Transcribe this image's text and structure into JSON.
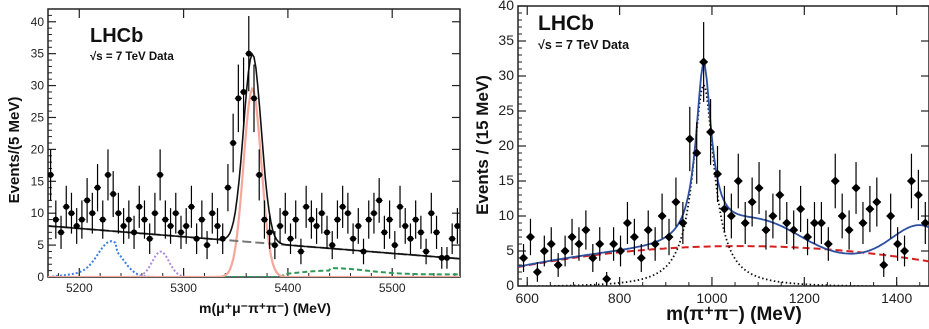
{
  "chart_data": [
    {
      "type": "scatter",
      "experiment_label": "LHCb",
      "energy_label": "√s = 7 TeV Data",
      "ylabel": "Events/(5 MeV)",
      "xlabel": "m(μ⁺μ⁻π⁺π⁻) (MeV)",
      "xlim": [
        5170,
        5565
      ],
      "ylim": [
        0,
        42
      ],
      "xticks": [
        5200,
        5300,
        5400,
        5500
      ],
      "yticks": [
        0,
        5,
        10,
        15,
        20,
        25,
        30,
        35,
        40
      ],
      "grid": false,
      "colors": {
        "frame": "#222222",
        "signal": "#f4a79a",
        "refl1": "#3a7fe0",
        "refl2": "#b088e0",
        "partial": "#2e9a55",
        "background": "#777777",
        "total": "#111111"
      },
      "points": {
        "x": [
          5172.5,
          5177.5,
          5182.5,
          5187.5,
          5192.5,
          5197.5,
          5202.5,
          5207.5,
          5212.5,
          5217.5,
          5222.5,
          5227.5,
          5232.5,
          5237.5,
          5242.5,
          5247.5,
          5252.5,
          5257.5,
          5262.5,
          5267.5,
          5272.5,
          5277.5,
          5282.5,
          5287.5,
          5292.5,
          5297.5,
          5302.5,
          5307.5,
          5312.5,
          5317.5,
          5322.5,
          5327.5,
          5332.5,
          5337.5,
          5342.5,
          5347.5,
          5352.5,
          5357.5,
          5362.5,
          5367.5,
          5372.5,
          5377.5,
          5382.5,
          5387.5,
          5392.5,
          5397.5,
          5402.5,
          5407.5,
          5412.5,
          5417.5,
          5422.5,
          5427.5,
          5432.5,
          5437.5,
          5442.5,
          5447.5,
          5452.5,
          5457.5,
          5462.5,
          5467.5,
          5472.5,
          5477.5,
          5482.5,
          5487.5,
          5492.5,
          5497.5,
          5502.5,
          5507.5,
          5512.5,
          5517.5,
          5522.5,
          5527.5,
          5532.5,
          5537.5,
          5542.5,
          5547.5,
          5552.5,
          5557.5,
          5562.5
        ],
        "y": [
          16,
          9,
          7,
          11,
          10,
          8,
          9,
          12,
          10,
          14,
          9,
          16,
          13,
          10,
          8,
          9,
          7,
          11,
          9,
          6,
          10,
          16,
          9,
          8,
          10,
          7,
          8,
          11,
          6,
          9,
          5,
          10,
          8,
          6,
          14,
          21,
          28,
          29,
          35,
          28,
          16,
          9,
          7,
          5,
          8,
          10,
          6,
          9,
          4,
          11,
          9,
          8,
          10,
          7,
          5,
          9,
          11,
          10,
          6,
          8,
          4,
          9,
          10,
          12,
          7,
          9,
          5,
          11,
          8,
          6,
          9,
          7,
          4,
          10,
          7,
          3,
          3,
          6,
          8
        ],
        "err": [
          4,
          3,
          2.6,
          3.3,
          3.2,
          2.8,
          3,
          3.5,
          3.2,
          3.7,
          3,
          4,
          3.6,
          3.2,
          2.8,
          3,
          2.6,
          3.3,
          3,
          2.4,
          3.2,
          4,
          3,
          2.8,
          3.2,
          2.6,
          2.8,
          3.3,
          2.4,
          3,
          2.2,
          3.2,
          2.8,
          2.4,
          3.7,
          4.6,
          5.3,
          5.4,
          5.9,
          5.3,
          4,
          3,
          2.6,
          2.2,
          2.8,
          3.2,
          2.4,
          3,
          2,
          3.3,
          3,
          2.8,
          3.2,
          2.6,
          2.2,
          3,
          3.3,
          3.2,
          2.4,
          2.8,
          2,
          3,
          3.2,
          3.5,
          2.6,
          3,
          2.2,
          3.3,
          2.8,
          2.4,
          3,
          2.6,
          2,
          3.2,
          2.6,
          1.7,
          1.7,
          2.4,
          2.8
        ]
      }
    },
    {
      "type": "scatter",
      "experiment_label": "LHCb",
      "energy_label": "√s = 7 TeV Data",
      "ylabel": "Events / (15 MeV)",
      "xlabel": "m(π⁺π⁻) (MeV)",
      "xlim": [
        580,
        1470
      ],
      "ylim": [
        0,
        40
      ],
      "xticks": [
        600,
        800,
        1000,
        1200,
        1400
      ],
      "yticks": [
        0,
        5,
        10,
        15,
        20,
        25,
        30,
        35,
        40
      ],
      "grid": false,
      "colors": {
        "frame": "#222222",
        "total": "#2c4fa0",
        "signal": "#111111",
        "background": "#d42020",
        "points": "#000000"
      },
      "points": {
        "x": [
          592,
          607,
          622,
          637,
          652,
          667,
          682,
          697,
          712,
          727,
          742,
          757,
          772,
          787,
          802,
          817,
          832,
          847,
          862,
          877,
          892,
          907,
          922,
          937,
          952,
          967,
          982,
          997,
          1012,
          1027,
          1042,
          1057,
          1072,
          1087,
          1102,
          1117,
          1132,
          1147,
          1162,
          1177,
          1192,
          1207,
          1222,
          1237,
          1252,
          1267,
          1282,
          1297,
          1312,
          1327,
          1342,
          1357,
          1372,
          1387,
          1402,
          1417,
          1432,
          1447,
          1462
        ],
        "y": [
          4,
          7,
          2,
          5,
          6,
          3,
          5,
          7,
          6,
          8,
          4,
          6,
          1,
          6,
          5,
          9,
          7,
          4,
          8,
          6,
          10,
          7,
          12,
          9,
          21,
          19,
          32,
          22,
          16,
          11,
          10,
          15,
          9,
          12,
          14,
          8,
          10,
          13,
          9,
          8,
          11,
          7,
          9,
          9,
          6,
          15,
          10,
          8,
          14,
          9,
          11,
          12,
          3,
          10,
          6,
          5,
          15,
          13,
          9
        ],
        "err": [
          2,
          2.6,
          1.4,
          2.2,
          2.4,
          1.7,
          2.2,
          2.6,
          2.4,
          2.8,
          2,
          2.4,
          1,
          2.4,
          2.2,
          3,
          2.6,
          2,
          2.8,
          2.4,
          3.2,
          2.6,
          3.5,
          3,
          4.6,
          4.4,
          5.7,
          4.7,
          4,
          3.3,
          3.2,
          3.9,
          3,
          3.5,
          3.7,
          2.8,
          3.2,
          3.6,
          3,
          2.8,
          3.3,
          2.6,
          3,
          3,
          2.4,
          3.9,
          3.2,
          2.8,
          3.7,
          3,
          3.3,
          3.5,
          1.7,
          3.2,
          2.4,
          2.2,
          3.9,
          3.6,
          3
        ]
      }
    }
  ]
}
